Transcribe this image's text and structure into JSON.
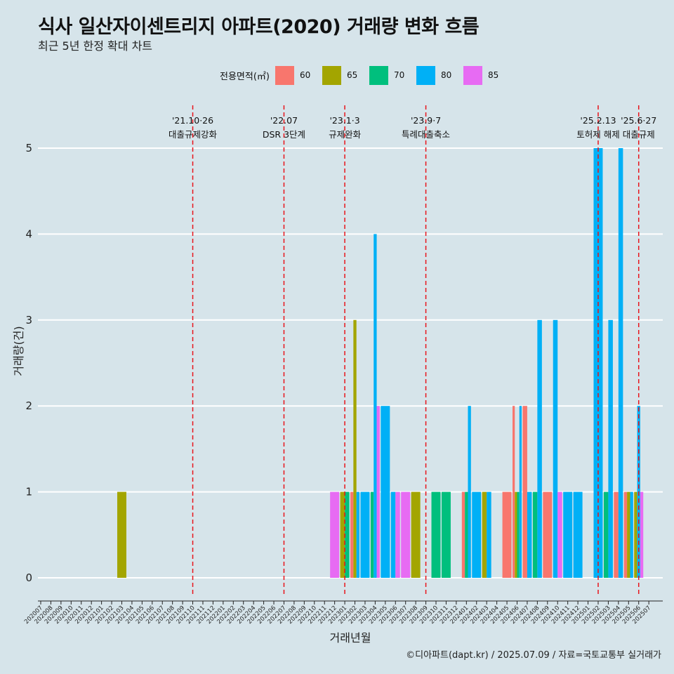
{
  "title": "식사 일산자이센트리지 아파트(2020) 거래량 변화 흐름",
  "subtitle": "최근 5년 한정 확대 차트",
  "legend": {
    "title": "전용면적(㎡)",
    "items": [
      {
        "label": "60",
        "color": "#f8766d"
      },
      {
        "label": "65",
        "color": "#a3a500"
      },
      {
        "label": "70",
        "color": "#00bf7d"
      },
      {
        "label": "80",
        "color": "#00b0f6"
      },
      {
        "label": "85",
        "color": "#e76bf3"
      }
    ]
  },
  "caption": "©디아파트(dapt.kr) / 2025.07.09 / 자료=국토교통부 실거래가",
  "chart_data": {
    "type": "bar",
    "xlabel": "거래년월",
    "ylabel": "거래량(건)",
    "ylim": [
      0,
      5
    ],
    "yticks": [
      0,
      1,
      2,
      3,
      4,
      5
    ],
    "grid": true,
    "legend_position": "top",
    "categories": [
      "202007",
      "202008",
      "202009",
      "202010",
      "202011",
      "202012",
      "202101",
      "202102",
      "202103",
      "202104",
      "202105",
      "202106",
      "202107",
      "202108",
      "202109",
      "202110",
      "202111",
      "202112",
      "202201",
      "202202",
      "202203",
      "202204",
      "202205",
      "202206",
      "202207",
      "202208",
      "202209",
      "202210",
      "202211",
      "202212",
      "202301",
      "202302",
      "202303",
      "202304",
      "202305",
      "202306",
      "202307",
      "202308",
      "202309",
      "202310",
      "202311",
      "202312",
      "202401",
      "202402",
      "202403",
      "202404",
      "202405",
      "202406",
      "202407",
      "202408",
      "202409",
      "202410",
      "202411",
      "202412",
      "202501",
      "202502",
      "202503",
      "202504",
      "202505",
      "202506",
      "202507"
    ],
    "series": [
      {
        "name": "60",
        "color": "#f8766d",
        "bars": [
          {
            "x": "202302",
            "y": 1
          },
          {
            "x": "202401",
            "y": 1
          },
          {
            "x": "202405",
            "y": 1
          },
          {
            "x": "202406",
            "y": 2
          },
          {
            "x": "202407",
            "y": 2
          },
          {
            "x": "202409",
            "y": 1
          },
          {
            "x": "202504",
            "y": 1
          },
          {
            "x": "202505",
            "y": 1
          }
        ]
      },
      {
        "name": "65",
        "color": "#a3a500",
        "bars": [
          {
            "x": "202103",
            "y": 1
          },
          {
            "x": "202301",
            "y": 1
          },
          {
            "x": "202302",
            "y": 3
          },
          {
            "x": "202308",
            "y": 1
          },
          {
            "x": "202403",
            "y": 1
          },
          {
            "x": "202406",
            "y": 1
          },
          {
            "x": "202505",
            "y": 1
          },
          {
            "x": "202506",
            "y": 1
          }
        ]
      },
      {
        "name": "70",
        "color": "#00bf7d",
        "bars": [
          {
            "x": "202301",
            "y": 1
          },
          {
            "x": "202304",
            "y": 1
          },
          {
            "x": "202310",
            "y": 1
          },
          {
            "x": "202311",
            "y": 1
          },
          {
            "x": "202401",
            "y": 1
          },
          {
            "x": "202406",
            "y": 1
          },
          {
            "x": "202408",
            "y": 1
          },
          {
            "x": "202503",
            "y": 1
          }
        ]
      },
      {
        "name": "80",
        "color": "#00b0f6",
        "bars": [
          {
            "x": "202302",
            "y": 1
          },
          {
            "x": "202303",
            "y": 1
          },
          {
            "x": "202304",
            "y": 4
          },
          {
            "x": "202305",
            "y": 2
          },
          {
            "x": "202306",
            "y": 1
          },
          {
            "x": "202402",
            "y": 1
          },
          {
            "x": "202401",
            "y": 2
          },
          {
            "x": "202403",
            "y": 1
          },
          {
            "x": "202406",
            "y": 2
          },
          {
            "x": "202407",
            "y": 1
          },
          {
            "x": "202408",
            "y": 3
          },
          {
            "x": "202410",
            "y": 3
          },
          {
            "x": "202411",
            "y": 1
          },
          {
            "x": "202412",
            "y": 1
          },
          {
            "x": "202502",
            "y": 5
          },
          {
            "x": "202503",
            "y": 3
          },
          {
            "x": "202504",
            "y": 5
          },
          {
            "x": "202505",
            "y": 1
          },
          {
            "x": "202506",
            "y": 2
          }
        ]
      },
      {
        "name": "85",
        "color": "#e76bf3",
        "bars": [
          {
            "x": "202212",
            "y": 1
          },
          {
            "x": "202304",
            "y": 2
          },
          {
            "x": "202306",
            "y": 1
          },
          {
            "x": "202307",
            "y": 1
          },
          {
            "x": "202410",
            "y": 1
          },
          {
            "x": "202506",
            "y": 1
          }
        ]
      }
    ],
    "annotations": [
      {
        "x": "202110",
        "date": "'21.10·26",
        "label": "대출규제강화"
      },
      {
        "x": "202207",
        "date": "'22.07",
        "label": "DSR 3단계"
      },
      {
        "x": "202301",
        "date": "'23.1·3",
        "label": "규제완화"
      },
      {
        "x": "202309",
        "date": "'23.9·7",
        "label": "특례대출축소"
      },
      {
        "x": "202502",
        "date": "'25.2.13",
        "label": "토허제 해제"
      },
      {
        "x": "202506",
        "date": "'25.6·27",
        "label": "대출규제"
      }
    ]
  }
}
